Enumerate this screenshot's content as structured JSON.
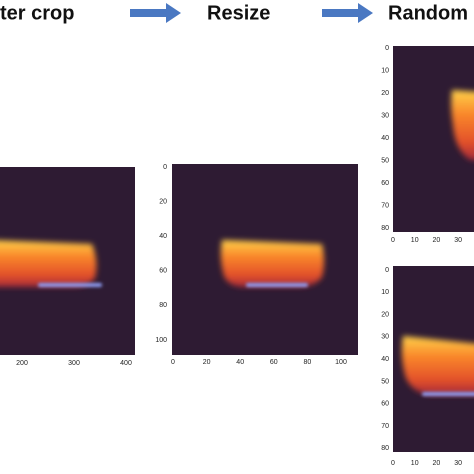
{
  "header": {
    "steps": [
      "ter crop",
      "Resize",
      "Random"
    ]
  },
  "panels": [
    {
      "xticks": [
        "200",
        "300",
        "400"
      ],
      "yticks": []
    },
    {
      "xticks": [
        "0",
        "20",
        "40",
        "60",
        "80",
        "100"
      ],
      "yticks": [
        "0",
        "20",
        "40",
        "60",
        "80",
        "100"
      ]
    },
    {
      "xticks": [
        "0",
        "10",
        "20",
        "30"
      ],
      "yticks": [
        "0",
        "10",
        "20",
        "30",
        "40",
        "50",
        "60",
        "70",
        "80"
      ]
    },
    {
      "xticks": [
        "0",
        "10",
        "20",
        "30"
      ],
      "yticks": [
        "0",
        "10",
        "20",
        "30",
        "40",
        "50",
        "60",
        "70",
        "80"
      ]
    }
  ]
}
